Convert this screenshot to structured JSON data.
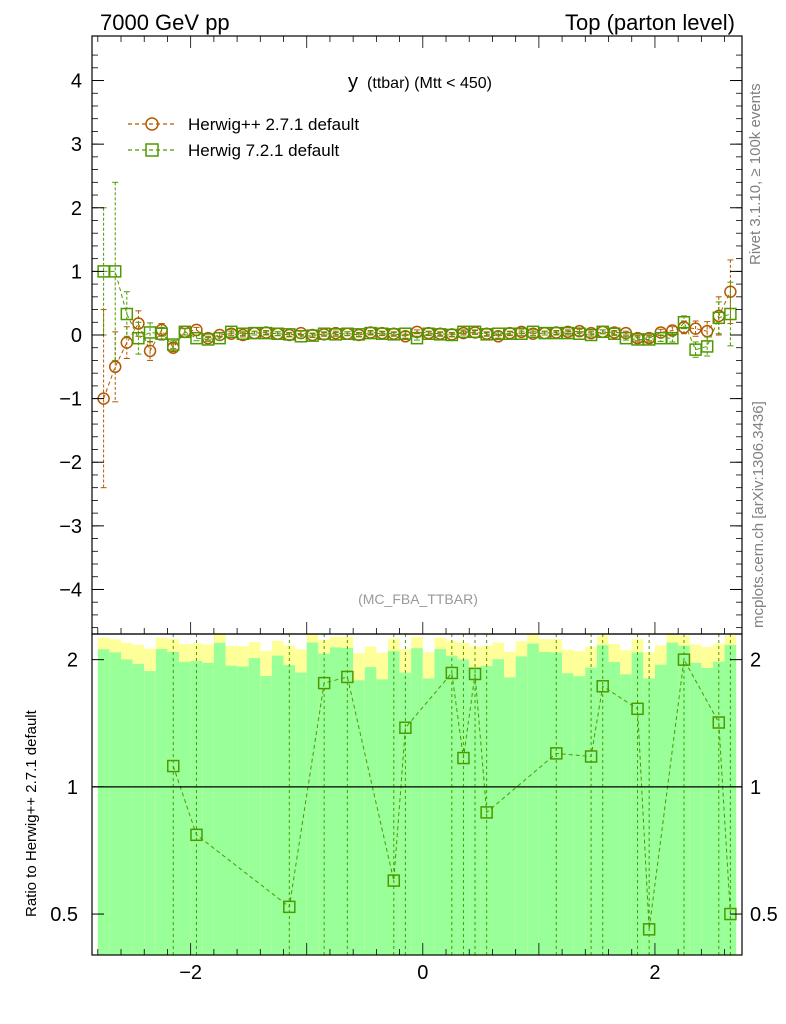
{
  "header": {
    "left": "7000 GeV pp",
    "right": "Top (parton level)"
  },
  "side_labels": {
    "rivet": "Rivet 3.1.10, ≥ 100k events",
    "mcplots": "mcplots.cern.ch [arXiv:1306.3436]"
  },
  "chart_data": [
    {
      "type": "line",
      "title_main": "y",
      "title_detail": "(ttbar) (Mtt < 450)",
      "watermark": "(MC_FBA_TTBAR)",
      "xlim": [
        -2.85,
        2.75
      ],
      "ylim": [
        -4.7,
        4.7
      ],
      "x_ticks": [
        -2,
        0,
        2
      ],
      "y_ticks": [
        -4,
        -3,
        -2,
        -1,
        0,
        1,
        2,
        3,
        4
      ],
      "y_tick_labels": [
        "−4",
        "−3",
        "−2",
        "−1",
        "0",
        "1",
        "2",
        "3",
        "4"
      ],
      "legend_position": "top-left",
      "series": [
        {
          "name": "Herwig++ 2.7.1 default",
          "color": "#b35900",
          "marker": "circle",
          "x": [
            -2.75,
            -2.65,
            -2.55,
            -2.45,
            -2.35,
            -2.25,
            -2.15,
            -2.05,
            -1.95,
            -1.85,
            -1.75,
            -1.65,
            -1.55,
            -1.45,
            -1.35,
            -1.25,
            -1.15,
            -1.05,
            -0.95,
            -0.85,
            -0.75,
            -0.65,
            -0.55,
            -0.45,
            -0.35,
            -0.25,
            -0.15,
            -0.05,
            0.05,
            0.15,
            0.25,
            0.35,
            0.45,
            0.55,
            0.65,
            0.75,
            0.85,
            0.95,
            1.05,
            1.15,
            1.25,
            1.35,
            1.45,
            1.55,
            1.65,
            1.75,
            1.85,
            1.95,
            2.05,
            2.15,
            2.25,
            2.35,
            2.45,
            2.55,
            2.65
          ],
          "y": [
            -1.0,
            -0.5,
            -0.12,
            0.18,
            -0.25,
            0.08,
            -0.2,
            0.05,
            0.08,
            -0.05,
            0.0,
            0.02,
            0.0,
            0.03,
            0.04,
            0.02,
            0.0,
            0.03,
            0.0,
            0.01,
            0.03,
            0.02,
            0.0,
            0.04,
            0.03,
            0.02,
            -0.02,
            0.05,
            0.03,
            0.02,
            0.01,
            0.03,
            0.04,
            0.02,
            -0.02,
            0.03,
            0.05,
            0.02,
            0.03,
            0.04,
            0.05,
            0.06,
            0.03,
            0.05,
            0.04,
            0.03,
            -0.05,
            -0.05,
            0.04,
            0.07,
            0.12,
            0.1,
            0.06,
            0.3,
            0.68
          ],
          "err": [
            1.4,
            0.55,
            0.25,
            0.2,
            0.15,
            0.1,
            0.06,
            0.05,
            0.04,
            0.03,
            0.03,
            0.03,
            0.03,
            0.03,
            0.03,
            0.03,
            0.03,
            0.03,
            0.03,
            0.03,
            0.03,
            0.03,
            0.03,
            0.03,
            0.03,
            0.03,
            0.03,
            0.03,
            0.03,
            0.03,
            0.03,
            0.03,
            0.03,
            0.03,
            0.03,
            0.03,
            0.03,
            0.03,
            0.03,
            0.03,
            0.03,
            0.03,
            0.03,
            0.03,
            0.03,
            0.03,
            0.04,
            0.04,
            0.05,
            0.06,
            0.1,
            0.12,
            0.15,
            0.3,
            0.5
          ]
        },
        {
          "name": "Herwig 7.2.1 default",
          "color": "#4d9900",
          "marker": "square",
          "x": [
            -2.75,
            -2.65,
            -2.55,
            -2.45,
            -2.35,
            -2.25,
            -2.15,
            -2.05,
            -1.95,
            -1.85,
            -1.75,
            -1.65,
            -1.55,
            -1.45,
            -1.35,
            -1.25,
            -1.15,
            -1.05,
            -0.95,
            -0.85,
            -0.75,
            -0.65,
            -0.55,
            -0.45,
            -0.35,
            -0.25,
            -0.15,
            -0.05,
            0.05,
            0.15,
            0.25,
            0.35,
            0.45,
            0.55,
            0.65,
            0.75,
            0.85,
            0.95,
            1.05,
            1.15,
            1.25,
            1.35,
            1.45,
            1.55,
            1.65,
            1.75,
            1.85,
            1.95,
            2.05,
            2.15,
            2.25,
            2.35,
            2.45,
            2.55,
            2.65
          ],
          "y": [
            1.0,
            1.0,
            0.33,
            -0.05,
            0.04,
            0.02,
            -0.15,
            0.05,
            -0.05,
            -0.07,
            -0.05,
            0.05,
            0.02,
            0.03,
            0.03,
            0.02,
            0.01,
            -0.02,
            -0.01,
            0.02,
            0.01,
            0.02,
            0.01,
            0.03,
            0.02,
            0.01,
            0.02,
            -0.05,
            0.02,
            0.01,
            0.0,
            0.05,
            0.05,
            0.01,
            0.02,
            0.02,
            0.02,
            0.05,
            0.03,
            0.03,
            0.03,
            0.02,
            0.0,
            0.05,
            0.02,
            -0.05,
            -0.07,
            -0.07,
            -0.05,
            -0.05,
            0.2,
            -0.23,
            -0.18,
            0.27,
            0.33
          ],
          "err": [
            1.0,
            1.4,
            0.35,
            0.25,
            0.15,
            0.1,
            0.06,
            0.05,
            0.04,
            0.03,
            0.03,
            0.03,
            0.03,
            0.03,
            0.03,
            0.03,
            0.03,
            0.03,
            0.03,
            0.03,
            0.03,
            0.03,
            0.03,
            0.03,
            0.03,
            0.03,
            0.03,
            0.03,
            0.03,
            0.03,
            0.03,
            0.03,
            0.03,
            0.03,
            0.03,
            0.03,
            0.03,
            0.03,
            0.03,
            0.03,
            0.03,
            0.03,
            0.03,
            0.03,
            0.03,
            0.03,
            0.04,
            0.04,
            0.05,
            0.06,
            0.1,
            0.12,
            0.15,
            0.25,
            0.5
          ]
        }
      ]
    },
    {
      "type": "line",
      "ylabel": "Ratio to Herwig++ 2.7.1 default",
      "y_scale": "log",
      "xlim": [
        -2.85,
        2.75
      ],
      "ylim": [
        0.4,
        2.3
      ],
      "x_ticks": [
        -2,
        0,
        2
      ],
      "x_tick_labels": [
        "−2",
        "0",
        "2"
      ],
      "y_ticks": [
        0.5,
        1,
        2
      ],
      "y_tick_labels": [
        "0.5",
        "1",
        "2"
      ],
      "reference_line": 1,
      "bands": {
        "green_color": "#99ff99",
        "yellow_color": "#ffff99"
      },
      "series": [
        {
          "name": "Herwig 7.2.1 default",
          "color": "#4d9900",
          "marker": "square",
          "points": [
            [
              -2.15,
              1.12
            ],
            [
              -1.95,
              0.77
            ],
            [
              -1.15,
              0.52
            ],
            [
              -0.85,
              1.76
            ],
            [
              -0.65,
              1.82
            ],
            [
              -0.25,
              0.6
            ],
            [
              -0.15,
              1.38
            ],
            [
              0.25,
              1.86
            ],
            [
              0.35,
              1.17
            ],
            [
              0.45,
              1.85
            ],
            [
              0.55,
              0.87
            ],
            [
              1.15,
              1.2
            ],
            [
              1.45,
              1.18
            ],
            [
              1.55,
              1.73
            ],
            [
              1.85,
              1.53
            ],
            [
              1.95,
              0.46
            ],
            [
              2.25,
              2.0
            ],
            [
              2.55,
              1.42
            ],
            [
              2.65,
              0.5
            ]
          ]
        }
      ]
    }
  ]
}
